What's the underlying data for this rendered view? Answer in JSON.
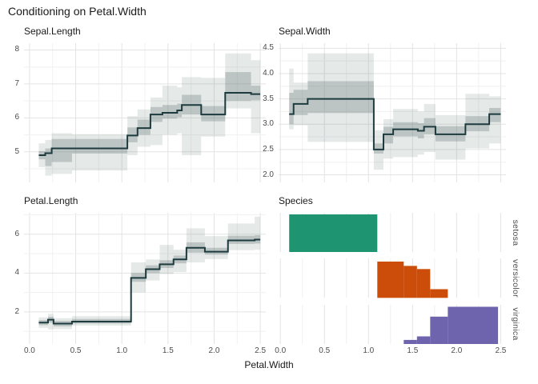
{
  "title": "Conditioning on Petal.Width",
  "x_axis_title": "Petal.Width",
  "palette": {
    "step_line": "#1d3b3e",
    "band_gray": "#5f7572",
    "grid_major": "#e3e3e3",
    "grid_minor": "#f0f0f0",
    "axis_text": "#4d4d4d",
    "title_text": "#1a1a1a",
    "setosa": "#1e9570",
    "versicolor": "#cc4c09",
    "virginica": "#6e64ad"
  },
  "x_axis": {
    "tick_values": [
      0,
      0.5,
      1.0,
      1.5,
      2.0,
      2.5
    ],
    "tick_labels": [
      "0.0",
      "0.5",
      "1.0",
      "1.5",
      "2.0",
      "2.5"
    ],
    "minor_values": [
      0.25,
      0.75,
      1.25,
      1.75,
      2.25
    ]
  },
  "step_format": [
    "x0",
    "x1",
    "y",
    "inner_lo",
    "inner_hi",
    "outer_lo",
    "outer_hi"
  ],
  "chart_data": [
    {
      "type": "line",
      "subtype": "step-with-bands",
      "title": "Sepal.Length",
      "xlim": [
        -0.06,
        2.56
      ],
      "ylim": [
        4.1,
        8.2
      ],
      "ytick_values": [
        5,
        6,
        7,
        8
      ],
      "ytick_labels": [
        "5",
        "6",
        "7",
        "8"
      ],
      "yminor_values": [
        4.5,
        5.5,
        6.5,
        7.5
      ],
      "steps": [
        [
          0.1,
          0.17,
          4.9,
          4.78,
          5.02,
          4.55,
          5.25
        ],
        [
          0.17,
          0.24,
          4.96,
          4.58,
          5.1,
          4.3,
          5.35
        ],
        [
          0.24,
          0.46,
          5.1,
          4.7,
          5.38,
          4.35,
          5.55
        ],
        [
          0.46,
          1.06,
          5.1,
          4.95,
          5.38,
          4.45,
          5.52
        ],
        [
          1.06,
          1.17,
          5.48,
          5.28,
          5.72,
          4.9,
          6.05
        ],
        [
          1.17,
          1.31,
          5.7,
          5.5,
          5.95,
          5.15,
          6.25
        ],
        [
          1.31,
          1.44,
          6.1,
          5.88,
          6.32,
          5.2,
          6.6
        ],
        [
          1.44,
          1.6,
          6.15,
          5.98,
          6.38,
          5.5,
          6.95
        ],
        [
          1.6,
          1.65,
          6.22,
          6.02,
          6.42,
          5.55,
          6.9
        ],
        [
          1.65,
          1.86,
          6.38,
          6.1,
          6.68,
          4.9,
          7.2
        ],
        [
          1.86,
          2.12,
          6.1,
          5.9,
          6.35,
          5.45,
          7.18
        ],
        [
          2.12,
          2.4,
          6.74,
          6.5,
          7.35,
          6.28,
          7.9
        ],
        [
          2.4,
          2.5,
          6.7,
          6.52,
          6.95,
          5.55,
          7.7
        ]
      ]
    },
    {
      "type": "line",
      "subtype": "step-with-bands",
      "title": "Sepal.Width",
      "xlim": [
        -0.02,
        2.56
      ],
      "ylim": [
        1.85,
        4.6
      ],
      "ytick_values": [
        2.0,
        2.5,
        3.0,
        3.5,
        4.0,
        4.5
      ],
      "ytick_labels": [
        "2.0",
        "2.5",
        "3.0",
        "3.5",
        "4.0",
        "4.5"
      ],
      "yminor_values": [
        2.25,
        2.75,
        3.25,
        3.75,
        4.25
      ],
      "steps": [
        [
          0.1,
          0.15,
          3.2,
          3.0,
          3.62,
          2.9,
          4.1
        ],
        [
          0.15,
          0.31,
          3.4,
          3.18,
          3.68,
          2.98,
          3.82
        ],
        [
          0.31,
          1.06,
          3.5,
          3.22,
          3.85,
          2.65,
          4.4
        ],
        [
          1.06,
          1.17,
          2.5,
          2.42,
          2.62,
          2.1,
          2.88
        ],
        [
          1.17,
          1.28,
          2.8,
          2.62,
          2.95,
          2.32,
          3.1
        ],
        [
          1.28,
          1.56,
          2.9,
          2.76,
          3.04,
          2.35,
          3.3
        ],
        [
          1.56,
          1.63,
          2.87,
          2.72,
          3.02,
          2.4,
          3.25
        ],
        [
          1.63,
          1.76,
          2.95,
          2.8,
          3.12,
          2.45,
          3.4
        ],
        [
          1.76,
          2.1,
          2.8,
          2.66,
          2.96,
          2.3,
          3.18
        ],
        [
          2.1,
          2.37,
          3.0,
          2.86,
          3.16,
          2.52,
          3.6
        ],
        [
          2.37,
          2.5,
          3.2,
          3.04,
          3.32,
          2.62,
          3.55
        ]
      ]
    },
    {
      "type": "line",
      "subtype": "step-with-bands",
      "title": "Petal.Length",
      "xlim": [
        -0.06,
        2.56
      ],
      "ylim": [
        0.35,
        7.1
      ],
      "ytick_values": [
        2,
        4,
        6
      ],
      "ytick_labels": [
        "2",
        "4",
        "6"
      ],
      "yminor_values": [
        1,
        3,
        5,
        7
      ],
      "steps": [
        [
          0.1,
          0.2,
          1.45,
          1.32,
          1.58,
          1.18,
          1.72
        ],
        [
          0.2,
          0.26,
          1.6,
          1.45,
          1.75,
          1.1,
          1.9
        ],
        [
          0.26,
          0.46,
          1.4,
          1.26,
          1.54,
          1.12,
          1.68
        ],
        [
          0.46,
          1.1,
          1.5,
          1.4,
          1.64,
          1.3,
          1.78
        ],
        [
          1.1,
          1.26,
          3.75,
          3.55,
          4.0,
          3.0,
          4.55
        ],
        [
          1.26,
          1.41,
          4.2,
          4.0,
          4.4,
          3.62,
          4.7
        ],
        [
          1.41,
          1.56,
          4.45,
          4.26,
          4.66,
          3.95,
          5.45
        ],
        [
          1.56,
          1.7,
          4.7,
          4.5,
          4.9,
          4.05,
          5.2
        ],
        [
          1.7,
          1.9,
          5.3,
          5.05,
          5.58,
          4.55,
          6.3
        ],
        [
          1.9,
          2.15,
          5.1,
          4.95,
          5.3,
          4.72,
          5.9
        ],
        [
          2.15,
          2.44,
          5.68,
          5.5,
          5.92,
          5.18,
          6.55
        ],
        [
          2.44,
          2.5,
          5.72,
          5.52,
          5.95,
          5.2,
          6.9
        ]
      ]
    },
    {
      "type": "bar",
      "subtype": "faceted-histogram",
      "title": "Species",
      "xlim": [
        -0.02,
        2.56
      ],
      "bar_format": [
        "x0",
        "x1",
        "height_fraction"
      ],
      "facets": [
        {
          "label": "setosa",
          "color": "#1e9570",
          "bars": [
            [
              0.1,
              1.1,
              0.96
            ]
          ]
        },
        {
          "label": "versicolor",
          "color": "#cc4c09",
          "bars": [
            [
              1.1,
              1.4,
              0.92
            ],
            [
              1.4,
              1.55,
              0.81
            ],
            [
              1.55,
              1.7,
              0.73
            ],
            [
              1.7,
              1.9,
              0.22
            ]
          ]
        },
        {
          "label": "virginica",
          "color": "#6e64ad",
          "bars": [
            [
              1.4,
              1.55,
              0.11
            ],
            [
              1.55,
              1.7,
              0.2
            ],
            [
              1.7,
              1.9,
              0.7
            ],
            [
              1.9,
              2.47,
              0.95
            ]
          ]
        }
      ]
    }
  ]
}
